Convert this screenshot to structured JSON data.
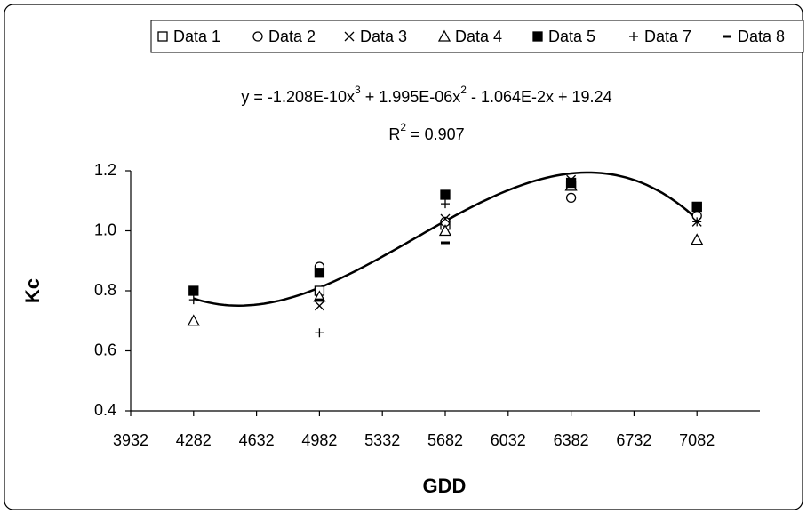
{
  "chart_data": {
    "type": "scatter",
    "equation": [
      "y = -1.208E-10x",
      "3",
      " + 1.995E-06x",
      "2",
      " - 1.064E-2x + 19.24"
    ],
    "r_squared": [
      "R",
      "2",
      " = 0.907"
    ],
    "trendline_coefficients": [
      -1.208e-10,
      1.995e-06,
      -0.01064,
      19.24
    ],
    "x_label": "GDD",
    "y_label": "Kc",
    "x": [
      4282,
      4982,
      5682,
      6382,
      7082
    ],
    "xlim": [
      3932,
      7432
    ],
    "xticks": [
      3932,
      4282,
      4632,
      4982,
      5332,
      5682,
      6032,
      6382,
      6732,
      7082
    ],
    "ylim": [
      0.4,
      1.2
    ],
    "yticks": [
      0.4,
      0.6,
      0.8,
      {
        "value": 1,
        "label": "1.0"
      },
      1.2
    ],
    "legend": "top",
    "series": [
      {
        "name": "Data 1",
        "marker": "square",
        "color": "#000",
        "values": [
          null,
          0.8,
          1.02,
          1.15,
          1.08
        ]
      },
      {
        "name": "Data 2",
        "marker": "circle",
        "color": "#000",
        "values": [
          null,
          0.88,
          1.03,
          1.11,
          1.05
        ]
      },
      {
        "name": "Data 3",
        "marker": "x",
        "color": "#000",
        "values": [
          null,
          0.75,
          1.04,
          1.17,
          1.03
        ]
      },
      {
        "name": "Data 4",
        "marker": "triangle",
        "color": "#000",
        "values": [
          0.7,
          0.78,
          1.0,
          1.15,
          0.97
        ]
      },
      {
        "name": "Data 5",
        "marker": "filled-square",
        "color": "#000",
        "values": [
          0.8,
          0.86,
          1.12,
          1.16,
          1.08
        ]
      },
      {
        "name": "Data 7",
        "marker": "plus",
        "color": "#000",
        "values": [
          0.77,
          0.66,
          1.09,
          1.16,
          1.03
        ]
      },
      {
        "name": "Data 8",
        "marker": "dash",
        "color": "#000",
        "values": [
          0.79,
          0.77,
          0.96,
          1.17,
          1.07
        ]
      }
    ]
  }
}
